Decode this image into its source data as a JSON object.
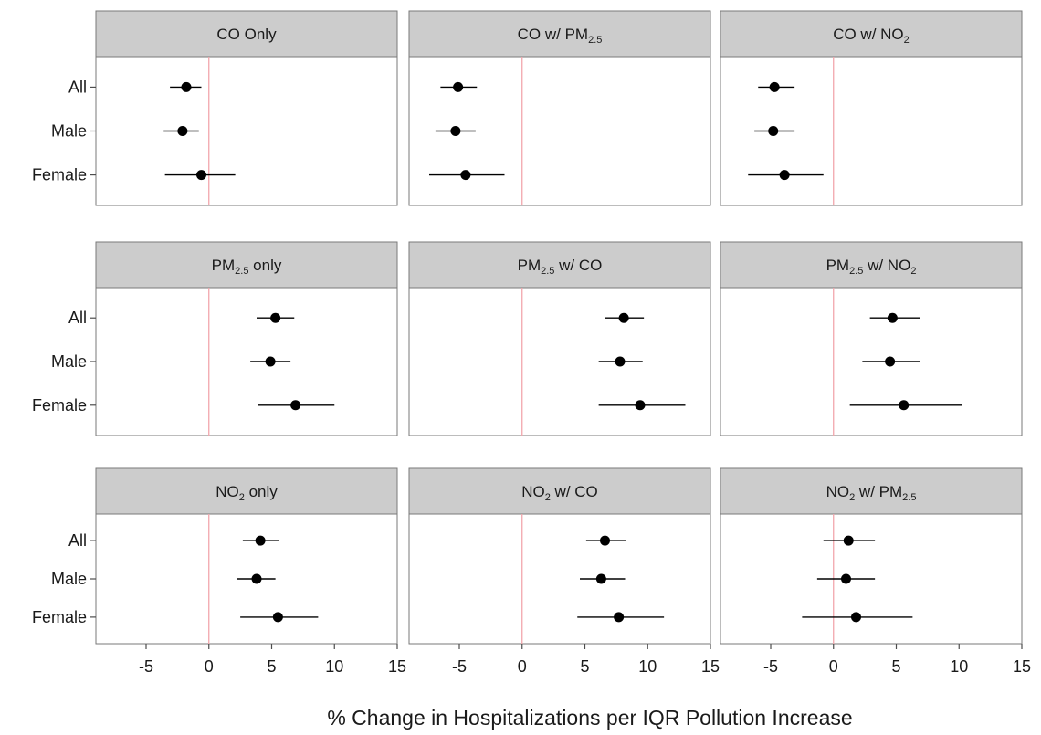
{
  "chart_data": {
    "type": "forest",
    "x_label": "% Change in Hospitalizations per IQR Pollution Increase",
    "x_range": [
      -9,
      15
    ],
    "x_ticks": [
      -5,
      0,
      5,
      10,
      15
    ],
    "x_tick_labels": [
      "-5",
      "0",
      "5",
      "10",
      "15"
    ],
    "reference_line": 0,
    "reference_line_color": "#f2a6ac",
    "strip_color": "#cccccc",
    "point_color": "#000000",
    "grid": false,
    "rows": [
      "All",
      "Male",
      "Female"
    ],
    "panels": [
      {
        "title": [
          {
            "t": "CO Only"
          }
        ],
        "estimates": [
          {
            "est": -1.8,
            "lo": -3.1,
            "hi": -0.6
          },
          {
            "est": -2.1,
            "lo": -3.6,
            "hi": -0.8
          },
          {
            "est": -0.6,
            "lo": -3.5,
            "hi": 2.1
          }
        ]
      },
      {
        "title": [
          {
            "t": "CO w/ PM"
          },
          {
            "t": "2.5",
            "sub": true
          }
        ],
        "estimates": [
          {
            "est": -5.1,
            "lo": -6.5,
            "hi": -3.6
          },
          {
            "est": -5.3,
            "lo": -6.9,
            "hi": -3.7
          },
          {
            "est": -4.5,
            "lo": -7.4,
            "hi": -1.4
          }
        ]
      },
      {
        "title": [
          {
            "t": "CO w/ NO"
          },
          {
            "t": "2",
            "sub": true
          }
        ],
        "estimates": [
          {
            "est": -4.7,
            "lo": -6.0,
            "hi": -3.1
          },
          {
            "est": -4.8,
            "lo": -6.3,
            "hi": -3.1
          },
          {
            "est": -3.9,
            "lo": -6.8,
            "hi": -0.8
          }
        ]
      },
      {
        "title": [
          {
            "t": "PM"
          },
          {
            "t": "2.5",
            "sub": true
          },
          {
            "t": " only"
          }
        ],
        "estimates": [
          {
            "est": 5.3,
            "lo": 3.8,
            "hi": 6.8
          },
          {
            "est": 4.9,
            "lo": 3.3,
            "hi": 6.5
          },
          {
            "est": 6.9,
            "lo": 3.9,
            "hi": 10.0
          }
        ]
      },
      {
        "title": [
          {
            "t": "PM"
          },
          {
            "t": "2.5",
            "sub": true
          },
          {
            "t": " w/ CO"
          }
        ],
        "estimates": [
          {
            "est": 8.1,
            "lo": 6.6,
            "hi": 9.7
          },
          {
            "est": 7.8,
            "lo": 6.1,
            "hi": 9.6
          },
          {
            "est": 9.4,
            "lo": 6.1,
            "hi": 13.0
          }
        ]
      },
      {
        "title": [
          {
            "t": "PM"
          },
          {
            "t": "2.5",
            "sub": true
          },
          {
            "t": " w/ NO"
          },
          {
            "t": "2",
            "sub": true
          }
        ],
        "estimates": [
          {
            "est": 4.7,
            "lo": 2.9,
            "hi": 6.9
          },
          {
            "est": 4.5,
            "lo": 2.3,
            "hi": 6.9
          },
          {
            "est": 5.6,
            "lo": 1.3,
            "hi": 10.2
          }
        ]
      },
      {
        "title": [
          {
            "t": "NO"
          },
          {
            "t": "2",
            "sub": true
          },
          {
            "t": " only"
          }
        ],
        "estimates": [
          {
            "est": 4.1,
            "lo": 2.7,
            "hi": 5.6
          },
          {
            "est": 3.8,
            "lo": 2.2,
            "hi": 5.3
          },
          {
            "est": 5.5,
            "lo": 2.5,
            "hi": 8.7
          }
        ]
      },
      {
        "title": [
          {
            "t": "NO"
          },
          {
            "t": "2",
            "sub": true
          },
          {
            "t": " w/ CO"
          }
        ],
        "estimates": [
          {
            "est": 6.6,
            "lo": 5.1,
            "hi": 8.3
          },
          {
            "est": 6.3,
            "lo": 4.6,
            "hi": 8.2
          },
          {
            "est": 7.7,
            "lo": 4.4,
            "hi": 11.3
          }
        ]
      },
      {
        "title": [
          {
            "t": "NO"
          },
          {
            "t": "2",
            "sub": true
          },
          {
            "t": " w/ PM"
          },
          {
            "t": "2.5",
            "sub": true
          }
        ],
        "estimates": [
          {
            "est": 1.2,
            "lo": -0.8,
            "hi": 3.3
          },
          {
            "est": 1.0,
            "lo": -1.3,
            "hi": 3.3
          },
          {
            "est": 1.8,
            "lo": -2.5,
            "hi": 6.3
          }
        ]
      }
    ]
  }
}
